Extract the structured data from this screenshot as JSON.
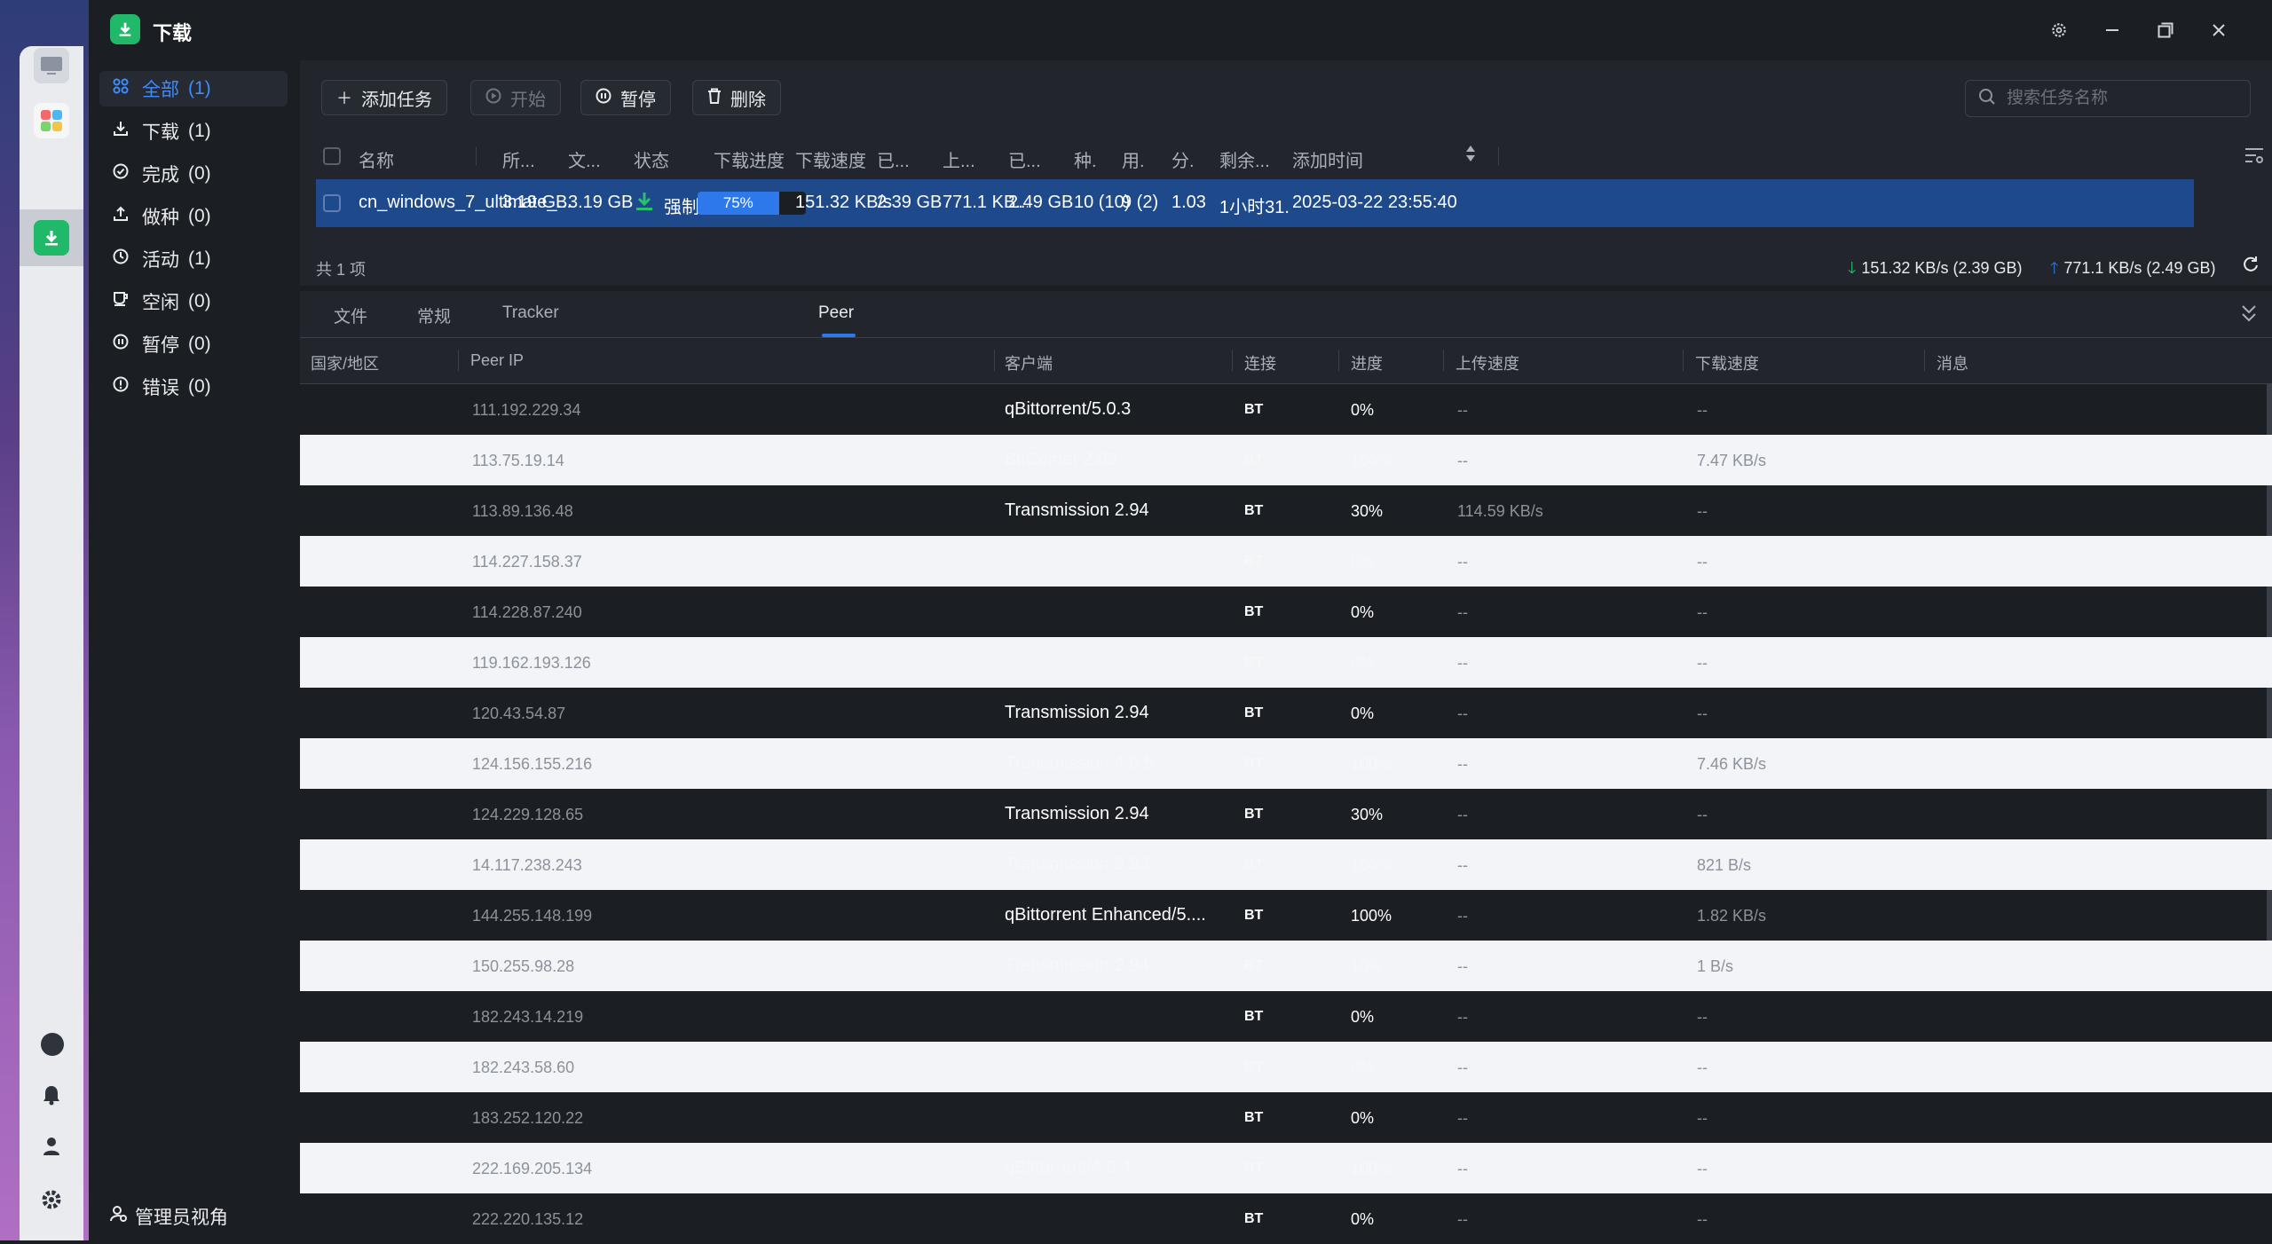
{
  "window": {
    "title": "下载",
    "settings_icon": "gear-icon",
    "minimize_icon": "minimize-icon",
    "maximize_icon": "restore-icon",
    "close_icon": "close-icon"
  },
  "nav": {
    "items": [
      {
        "label": "全部",
        "count": "(1)",
        "icon": "grid-icon",
        "active": true
      },
      {
        "label": "下载",
        "count": "(1)",
        "icon": "download-icon"
      },
      {
        "label": "完成",
        "count": "(0)",
        "icon": "check-circle-icon"
      },
      {
        "label": "做种",
        "count": "(0)",
        "icon": "upload-icon"
      },
      {
        "label": "活动",
        "count": "(1)",
        "icon": "activity-icon"
      },
      {
        "label": "空闲",
        "count": "(0)",
        "icon": "coffee-icon"
      },
      {
        "label": "暂停",
        "count": "(0)",
        "icon": "pause-circle-icon"
      },
      {
        "label": "错误",
        "count": "(0)",
        "icon": "alert-circle-icon"
      }
    ],
    "admin_label": "管理员视角"
  },
  "toolbar": {
    "add_label": "添加任务",
    "start_label": "开始",
    "pause_label": "暂停",
    "delete_label": "删除",
    "search_placeholder": "搜索任务名称"
  },
  "task_table": {
    "headers": [
      "名称",
      "所...",
      "文...",
      "状态",
      "下载进度",
      "下载速度",
      "已...",
      "上...",
      "已...",
      "种.",
      "用.",
      "分.",
      "剩余...",
      "添加时间"
    ],
    "row": {
      "name": "cn_windows_7_ultimate_...",
      "size1": "3.19 GB",
      "size2": "3.19 GB",
      "status": "强制下...",
      "progress_label": "75%",
      "progress": 0.75,
      "dl_speed": "151.32 KB/s",
      "downloaded": "2.39 GB",
      "up_speed": "771.1 KB...",
      "uploaded": "2.49 GB",
      "seeds": "10 (10)",
      "peers": "9 (2)",
      "ratio": "1.03",
      "remaining": "1小时31...",
      "added": "2025-03-22 23:55:40"
    },
    "summary": "共 1 项",
    "total_down": "151.32 KB/s (2.39 GB)",
    "total_up": "771.1 KB/s (2.49 GB)"
  },
  "detail_tabs": [
    "文件",
    "常规",
    "Tracker",
    "Peer"
  ],
  "peer_table": {
    "headers": [
      "国家/地区",
      "Peer IP",
      "客户端",
      "连接",
      "进度",
      "上传速度",
      "下载速度",
      "消息"
    ],
    "rows": [
      {
        "ip": "111.192.229.34",
        "client": "qBittorrent/5.0.3",
        "conn": "BT",
        "progress": "0%",
        "up": "--",
        "down": "--"
      },
      {
        "ip": "113.75.19.14",
        "client": "BitComet 2.09",
        "conn": "BT",
        "progress": "100%",
        "up": "--",
        "down": "7.47 KB/s"
      },
      {
        "ip": "113.89.136.48",
        "client": "Transmission 2.94",
        "conn": "BT",
        "progress": "30%",
        "up": "114.59 KB/s",
        "down": "--"
      },
      {
        "ip": "114.227.158.37",
        "client": "",
        "conn": "BT",
        "progress": "0%",
        "up": "--",
        "down": "--"
      },
      {
        "ip": "114.228.87.240",
        "client": "",
        "conn": "BT",
        "progress": "0%",
        "up": "--",
        "down": "--"
      },
      {
        "ip": "119.162.193.126",
        "client": "",
        "conn": "BT",
        "progress": "0%",
        "up": "--",
        "down": "--"
      },
      {
        "ip": "120.43.54.87",
        "client": "Transmission 2.94",
        "conn": "BT",
        "progress": "0%",
        "up": "--",
        "down": "--"
      },
      {
        "ip": "124.156.155.216",
        "client": "Transmission 4.0.5",
        "conn": "BT",
        "progress": "100%",
        "up": "--",
        "down": "7.46 KB/s"
      },
      {
        "ip": "124.229.128.65",
        "client": "Transmission 2.94",
        "conn": "BT",
        "progress": "30%",
        "up": "--",
        "down": "--"
      },
      {
        "ip": "14.117.238.243",
        "client": "Transmission 2.93",
        "conn": "BT",
        "progress": "100%",
        "up": "--",
        "down": "821 B/s"
      },
      {
        "ip": "144.255.148.199",
        "client": "qBittorrent Enhanced/5....",
        "conn": "BT",
        "progress": "100%",
        "up": "--",
        "down": "1.82 KB/s"
      },
      {
        "ip": "150.255.98.28",
        "client": "Transmission 2.94",
        "conn": "BT",
        "progress": "10%",
        "up": "--",
        "down": "1 B/s"
      },
      {
        "ip": "182.243.14.219",
        "client": "",
        "conn": "BT",
        "progress": "0%",
        "up": "--",
        "down": "--"
      },
      {
        "ip": "182.243.58.60",
        "client": "",
        "conn": "BT",
        "progress": "0%",
        "up": "--",
        "down": "--"
      },
      {
        "ip": "183.252.120.22",
        "client": "",
        "conn": "BT",
        "progress": "0%",
        "up": "--",
        "down": "--"
      },
      {
        "ip": "222.169.205.134",
        "client": "qBittorrent/4.6.4",
        "conn": "BT",
        "progress": "100%",
        "up": "--",
        "down": "--"
      },
      {
        "ip": "222.220.135.12",
        "client": "",
        "conn": "BT",
        "progress": "0%",
        "up": "--",
        "down": "--"
      }
    ]
  },
  "colors": {
    "accent": "#2d78ea",
    "selected_row": "#1e4a8c",
    "app_green": "#20b96a",
    "up_arrow": "#2d78ea",
    "down_arrow": "#27c26c"
  }
}
